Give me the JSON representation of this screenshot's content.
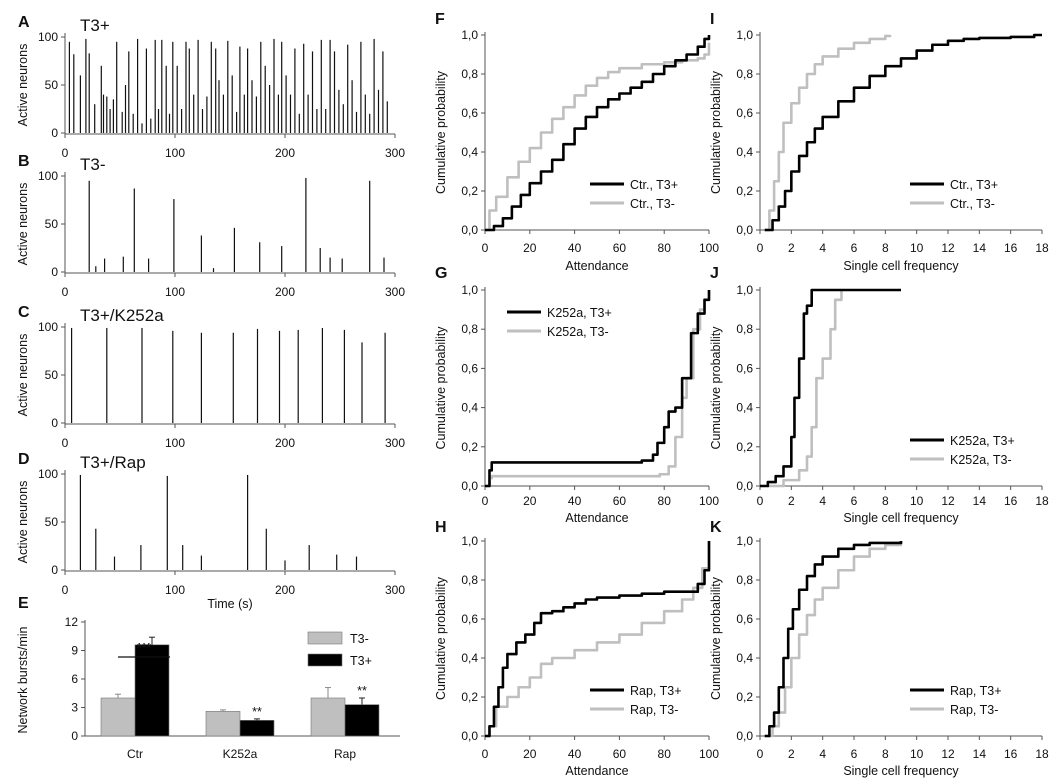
{
  "raster": {
    "xlabel": "Time (s)",
    "ylabel": "Active neurons",
    "xticks": [
      0,
      100,
      200,
      300
    ],
    "yticks": [
      0,
      50,
      100
    ],
    "panels": [
      {
        "letter": "A",
        "title": "T3+",
        "times": [
          4,
          8,
          14,
          19,
          22,
          27,
          33,
          35,
          38,
          41,
          44,
          47,
          52,
          55,
          58,
          62,
          66,
          70,
          74,
          78,
          82,
          85,
          88,
          92,
          95,
          98,
          102,
          106,
          110,
          113,
          117,
          121,
          125,
          129,
          133,
          137,
          140,
          144,
          148,
          152,
          156,
          159,
          163,
          166,
          170,
          174,
          178,
          182,
          186,
          190,
          194,
          197,
          201,
          205,
          209,
          213,
          217,
          221,
          225,
          229,
          233,
          237,
          241,
          245,
          249,
          253,
          257,
          261,
          265,
          269,
          273,
          277,
          281,
          285,
          289,
          293
        ],
        "values": [
          95,
          82,
          60,
          98,
          83,
          30,
          70,
          40,
          38,
          25,
          35,
          95,
          22,
          50,
          85,
          20,
          98,
          10,
          88,
          15,
          97,
          25,
          97,
          70,
          20,
          95,
          70,
          25,
          95,
          88,
          40,
          97,
          25,
          38,
          95,
          88,
          55,
          40,
          96,
          60,
          22,
          90,
          40,
          88,
          55,
          38,
          95,
          70,
          50,
          98,
          40,
          95,
          60,
          40,
          88,
          20,
          93,
          40,
          85,
          25,
          97,
          25,
          97,
          85,
          45,
          30,
          92,
          55,
          22,
          95,
          40,
          20,
          98,
          45,
          85,
          33
        ]
      },
      {
        "letter": "B",
        "title": "T3-",
        "times": [
          22,
          28,
          36,
          53,
          63,
          76,
          99,
          124,
          135,
          154,
          177,
          197,
          219,
          232,
          241,
          252,
          277,
          290
        ],
        "values": [
          95,
          6,
          14,
          16,
          87,
          14,
          76,
          38,
          4,
          46,
          31,
          27,
          98,
          25,
          15,
          14,
          95,
          15
        ]
      },
      {
        "letter": "C",
        "title": "T3+/K252a",
        "times": [
          6,
          38,
          70,
          98,
          124,
          153,
          175,
          195,
          212,
          234,
          254,
          270,
          291
        ],
        "values": [
          99,
          99,
          99,
          96,
          94,
          94,
          98,
          96,
          97,
          99,
          97,
          84,
          94
        ]
      },
      {
        "letter": "D",
        "title": "T3+/Rap",
        "times": [
          14,
          28,
          45,
          69,
          93,
          107,
          124,
          166,
          183,
          200,
          222,
          247,
          265
        ],
        "values": [
          99,
          43,
          14,
          26,
          98,
          26,
          15,
          99,
          43,
          10,
          26,
          16,
          14
        ]
      }
    ]
  },
  "bars": {
    "letter": "E",
    "ylabel": "Network bursts/min",
    "yticks": [
      0,
      3,
      6,
      9,
      12
    ],
    "groups": [
      "Ctr",
      "K252a",
      "Rap"
    ],
    "legend": [
      "T3-",
      "T3+"
    ],
    "colors": {
      "T3-": "#bfbfbf",
      "T3+": "#000000"
    },
    "series": [
      {
        "name": "T3-",
        "values": [
          4.0,
          2.6,
          4.0
        ],
        "errors": [
          0.4,
          0.15,
          1.1
        ]
      },
      {
        "name": "T3+",
        "values": [
          9.6,
          1.65,
          3.3
        ],
        "errors": [
          0.8,
          0.15,
          0.7
        ]
      }
    ],
    "sig_bracket": "***",
    "sig_stars": [
      "**",
      "**"
    ]
  },
  "cdf": {
    "ylabel": "Cumulative probability",
    "yticks": [
      "0,0",
      "0,2",
      "0,4",
      "0,6",
      "0,8",
      "1,0"
    ],
    "att_xticks": [
      0,
      20,
      40,
      60,
      80,
      100
    ],
    "freq_xticks": [
      0,
      2,
      4,
      6,
      8,
      10,
      12,
      14,
      16,
      18
    ],
    "att_xlabel": "Attendance",
    "freq_xlabel": "Single cell frequency",
    "colors": {
      "T3+": "#000000",
      "T3-": "#bfbfbf"
    },
    "panels": [
      {
        "letter": "F",
        "type": "att",
        "legend": [
          "Ctr., T3+",
          "Ctr., T3-"
        ],
        "black": [
          [
            0,
            0
          ],
          [
            4,
            0.02
          ],
          [
            8,
            0.06
          ],
          [
            12,
            0.12
          ],
          [
            16,
            0.18
          ],
          [
            20,
            0.24
          ],
          [
            25,
            0.3
          ],
          [
            30,
            0.36
          ],
          [
            35,
            0.44
          ],
          [
            40,
            0.52
          ],
          [
            45,
            0.58
          ],
          [
            50,
            0.63
          ],
          [
            55,
            0.67
          ],
          [
            60,
            0.7
          ],
          [
            65,
            0.73
          ],
          [
            70,
            0.76
          ],
          [
            75,
            0.8
          ],
          [
            80,
            0.84
          ],
          [
            85,
            0.87
          ],
          [
            90,
            0.9
          ],
          [
            95,
            0.94
          ],
          [
            98,
            0.98
          ],
          [
            100,
            1.0
          ]
        ],
        "grey": [
          [
            0,
            0
          ],
          [
            2,
            0.1
          ],
          [
            5,
            0.17
          ],
          [
            10,
            0.27
          ],
          [
            15,
            0.35
          ],
          [
            20,
            0.42
          ],
          [
            25,
            0.5
          ],
          [
            30,
            0.57
          ],
          [
            35,
            0.63
          ],
          [
            40,
            0.69
          ],
          [
            45,
            0.74
          ],
          [
            50,
            0.78
          ],
          [
            55,
            0.81
          ],
          [
            60,
            0.83
          ],
          [
            70,
            0.85
          ],
          [
            80,
            0.86
          ],
          [
            88,
            0.87
          ],
          [
            95,
            0.88
          ],
          [
            98,
            0.9
          ],
          [
            100,
            0.96
          ]
        ]
      },
      {
        "letter": "G",
        "type": "att",
        "legend": [
          "K252a, T3+",
          "K252a, T3-"
        ],
        "black": [
          [
            0,
            0
          ],
          [
            2,
            0.08
          ],
          [
            3,
            0.12
          ],
          [
            20,
            0.12
          ],
          [
            40,
            0.12
          ],
          [
            60,
            0.12
          ],
          [
            70,
            0.13
          ],
          [
            75,
            0.16
          ],
          [
            77,
            0.22
          ],
          [
            80,
            0.3
          ],
          [
            82,
            0.38
          ],
          [
            85,
            0.4
          ],
          [
            88,
            0.55
          ],
          [
            92,
            0.78
          ],
          [
            95,
            0.88
          ],
          [
            98,
            0.95
          ],
          [
            100,
            1.0
          ]
        ],
        "grey": [
          [
            0,
            0
          ],
          [
            2,
            0.04
          ],
          [
            3,
            0.05
          ],
          [
            40,
            0.05
          ],
          [
            70,
            0.05
          ],
          [
            78,
            0.06
          ],
          [
            82,
            0.1
          ],
          [
            85,
            0.25
          ],
          [
            88,
            0.45
          ],
          [
            90,
            0.55
          ],
          [
            93,
            0.8
          ],
          [
            96,
            0.9
          ],
          [
            98,
            0.95
          ],
          [
            100,
            1.0
          ]
        ]
      },
      {
        "letter": "H",
        "type": "att",
        "legend": [
          "Rap, T3+",
          "Rap, T3-"
        ],
        "black": [
          [
            0,
            0
          ],
          [
            2,
            0.05
          ],
          [
            4,
            0.15
          ],
          [
            6,
            0.25
          ],
          [
            8,
            0.35
          ],
          [
            10,
            0.42
          ],
          [
            14,
            0.48
          ],
          [
            18,
            0.52
          ],
          [
            22,
            0.58
          ],
          [
            25,
            0.63
          ],
          [
            30,
            0.64
          ],
          [
            35,
            0.66
          ],
          [
            40,
            0.68
          ],
          [
            45,
            0.7
          ],
          [
            50,
            0.71
          ],
          [
            60,
            0.72
          ],
          [
            70,
            0.73
          ],
          [
            80,
            0.74
          ],
          [
            90,
            0.74
          ],
          [
            95,
            0.78
          ],
          [
            98,
            0.85
          ],
          [
            100,
            1.0
          ]
        ],
        "grey": [
          [
            0,
            0
          ],
          [
            2,
            0.05
          ],
          [
            5,
            0.15
          ],
          [
            10,
            0.2
          ],
          [
            15,
            0.25
          ],
          [
            20,
            0.3
          ],
          [
            25,
            0.37
          ],
          [
            30,
            0.4
          ],
          [
            40,
            0.44
          ],
          [
            50,
            0.48
          ],
          [
            60,
            0.52
          ],
          [
            70,
            0.58
          ],
          [
            80,
            0.64
          ],
          [
            88,
            0.7
          ],
          [
            93,
            0.76
          ],
          [
            97,
            0.86
          ],
          [
            100,
            1.0
          ]
        ]
      },
      {
        "letter": "I",
        "type": "freq",
        "legend": [
          "Ctr., T3+",
          "Ctr., T3-"
        ],
        "black": [
          [
            0.3,
            0
          ],
          [
            0.8,
            0.05
          ],
          [
            1.2,
            0.12
          ],
          [
            1.6,
            0.2
          ],
          [
            2.0,
            0.3
          ],
          [
            2.5,
            0.38
          ],
          [
            3.0,
            0.45
          ],
          [
            3.5,
            0.52
          ],
          [
            4.0,
            0.58
          ],
          [
            5.0,
            0.66
          ],
          [
            6.0,
            0.73
          ],
          [
            7.0,
            0.79
          ],
          [
            8.0,
            0.84
          ],
          [
            9.0,
            0.88
          ],
          [
            10.0,
            0.92
          ],
          [
            11.0,
            0.95
          ],
          [
            12.0,
            0.97
          ],
          [
            13.0,
            0.98
          ],
          [
            14.0,
            0.985
          ],
          [
            16.0,
            0.99
          ],
          [
            17.5,
            1.0
          ],
          [
            18.0,
            1.0
          ]
        ],
        "grey": [
          [
            0.3,
            0
          ],
          [
            0.6,
            0.1
          ],
          [
            0.9,
            0.25
          ],
          [
            1.2,
            0.4
          ],
          [
            1.5,
            0.55
          ],
          [
            2.0,
            0.65
          ],
          [
            2.5,
            0.73
          ],
          [
            3.0,
            0.8
          ],
          [
            3.5,
            0.85
          ],
          [
            4.0,
            0.89
          ],
          [
            5.0,
            0.93
          ],
          [
            6.0,
            0.96
          ],
          [
            7.0,
            0.98
          ],
          [
            8.0,
            0.995
          ],
          [
            8.3,
            1.0
          ]
        ]
      },
      {
        "letter": "J",
        "type": "freq",
        "legend": [
          "K252a, T3+",
          "K252a, T3-"
        ],
        "black": [
          [
            0,
            0
          ],
          [
            0.5,
            0.02
          ],
          [
            1.0,
            0.05
          ],
          [
            1.5,
            0.1
          ],
          [
            2.0,
            0.25
          ],
          [
            2.2,
            0.45
          ],
          [
            2.5,
            0.65
          ],
          [
            2.8,
            0.88
          ],
          [
            3.0,
            0.92
          ],
          [
            3.3,
            1.0
          ],
          [
            9.0,
            1.0
          ]
        ],
        "grey": [
          [
            0.5,
            0
          ],
          [
            1.5,
            0.03
          ],
          [
            2.5,
            0.08
          ],
          [
            3.0,
            0.15
          ],
          [
            3.3,
            0.3
          ],
          [
            3.6,
            0.55
          ],
          [
            4.0,
            0.65
          ],
          [
            4.5,
            0.8
          ],
          [
            4.8,
            0.95
          ],
          [
            5.2,
            1.0
          ]
        ]
      },
      {
        "letter": "K",
        "type": "freq",
        "legend": [
          "Rap, T3+",
          "Rap, T3-"
        ],
        "black": [
          [
            0.3,
            0
          ],
          [
            0.6,
            0.05
          ],
          [
            0.9,
            0.12
          ],
          [
            1.2,
            0.25
          ],
          [
            1.5,
            0.4
          ],
          [
            1.8,
            0.55
          ],
          [
            2.1,
            0.65
          ],
          [
            2.5,
            0.75
          ],
          [
            3.0,
            0.82
          ],
          [
            3.5,
            0.88
          ],
          [
            4.0,
            0.92
          ],
          [
            5.0,
            0.96
          ],
          [
            6.0,
            0.98
          ],
          [
            7.0,
            0.99
          ],
          [
            9.0,
            1.0
          ]
        ],
        "grey": [
          [
            0.3,
            0
          ],
          [
            0.8,
            0.05
          ],
          [
            1.2,
            0.12
          ],
          [
            1.6,
            0.25
          ],
          [
            2.0,
            0.4
          ],
          [
            2.5,
            0.52
          ],
          [
            3.0,
            0.62
          ],
          [
            3.5,
            0.7
          ],
          [
            4.0,
            0.76
          ],
          [
            5.0,
            0.85
          ],
          [
            6.0,
            0.92
          ],
          [
            7.0,
            0.96
          ],
          [
            8.0,
            0.98
          ],
          [
            9.0,
            1.0
          ]
        ]
      }
    ]
  }
}
